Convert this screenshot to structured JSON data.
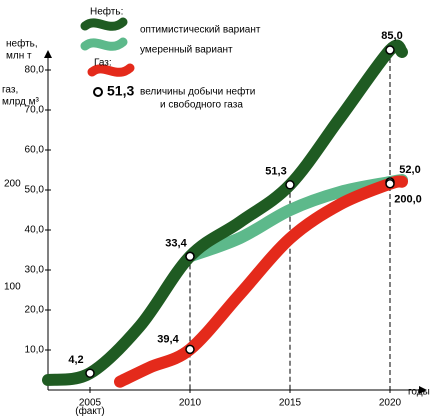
{
  "chart_data": {
    "type": "line",
    "y_axis_label": [
      "нефть,",
      "млн т"
    ],
    "y2_axis_label": [
      "газ,",
      "млрд м³"
    ],
    "x_axis_label": "годы",
    "x_note": "(факт)",
    "legend": {
      "oil_heading": "Нефть:",
      "marker_value": "51,3",
      "marker_text": [
        "величины добычи нефти",
        "и свободного газа"
      ]
    },
    "xlim": [
      2002.9,
      2021.25
    ],
    "xticks": [
      2005,
      2010,
      2015,
      2020
    ],
    "ylim": [
      0,
      82.5
    ],
    "yticks": [
      {
        "value": 10,
        "label": "10,0"
      },
      {
        "value": 20,
        "label": "20,0"
      },
      {
        "value": 30,
        "label": "30,0"
      },
      {
        "value": 40,
        "label": "40,0"
      },
      {
        "value": 50,
        "label": "50,0"
      },
      {
        "value": 60,
        "label": "60,0"
      },
      {
        "value": 70,
        "label": "70,0"
      },
      {
        "value": 80,
        "label": "80,0"
      }
    ],
    "y2lim": [
      0,
      320
    ],
    "y2ticks": [
      100,
      200
    ],
    "series": [
      {
        "name": "оптимистический вариант",
        "color": "#1f5b22",
        "x": [
          2002.9,
          2005,
          2007.5,
          2010,
          2012.5,
          2015,
          2017.5,
          2020,
          2020.6
        ],
        "values": [
          2.5,
          4.2,
          16,
          33.4,
          42,
          51.3,
          68,
          85.0,
          84.5
        ],
        "value_labels": [
          null,
          "4,2",
          null,
          "33,4",
          null,
          "51,3",
          null,
          "85,0",
          null
        ]
      },
      {
        "name": "умеренный вариант",
        "color": "#5db98b",
        "x": [
          2010,
          2012.5,
          2015,
          2017.5,
          2020,
          2020.6
        ],
        "values": [
          33.4,
          38,
          45,
          49.5,
          52.0,
          52.5
        ],
        "value_labels": [
          "33,4",
          null,
          null,
          null,
          "52,0",
          null
        ]
      },
      {
        "name": "Газ:",
        "color": "#e42a1b",
        "axis": "y2",
        "x": [
          2006.5,
          2008,
          2010,
          2012.5,
          2015,
          2017.5,
          2020,
          2020.6
        ],
        "values": [
          8,
          22,
          39.4,
          93,
          147,
          180,
          200.0,
          202
        ],
        "value_labels": [
          null,
          null,
          "39,4",
          null,
          null,
          null,
          "200,0",
          null
        ]
      }
    ]
  }
}
